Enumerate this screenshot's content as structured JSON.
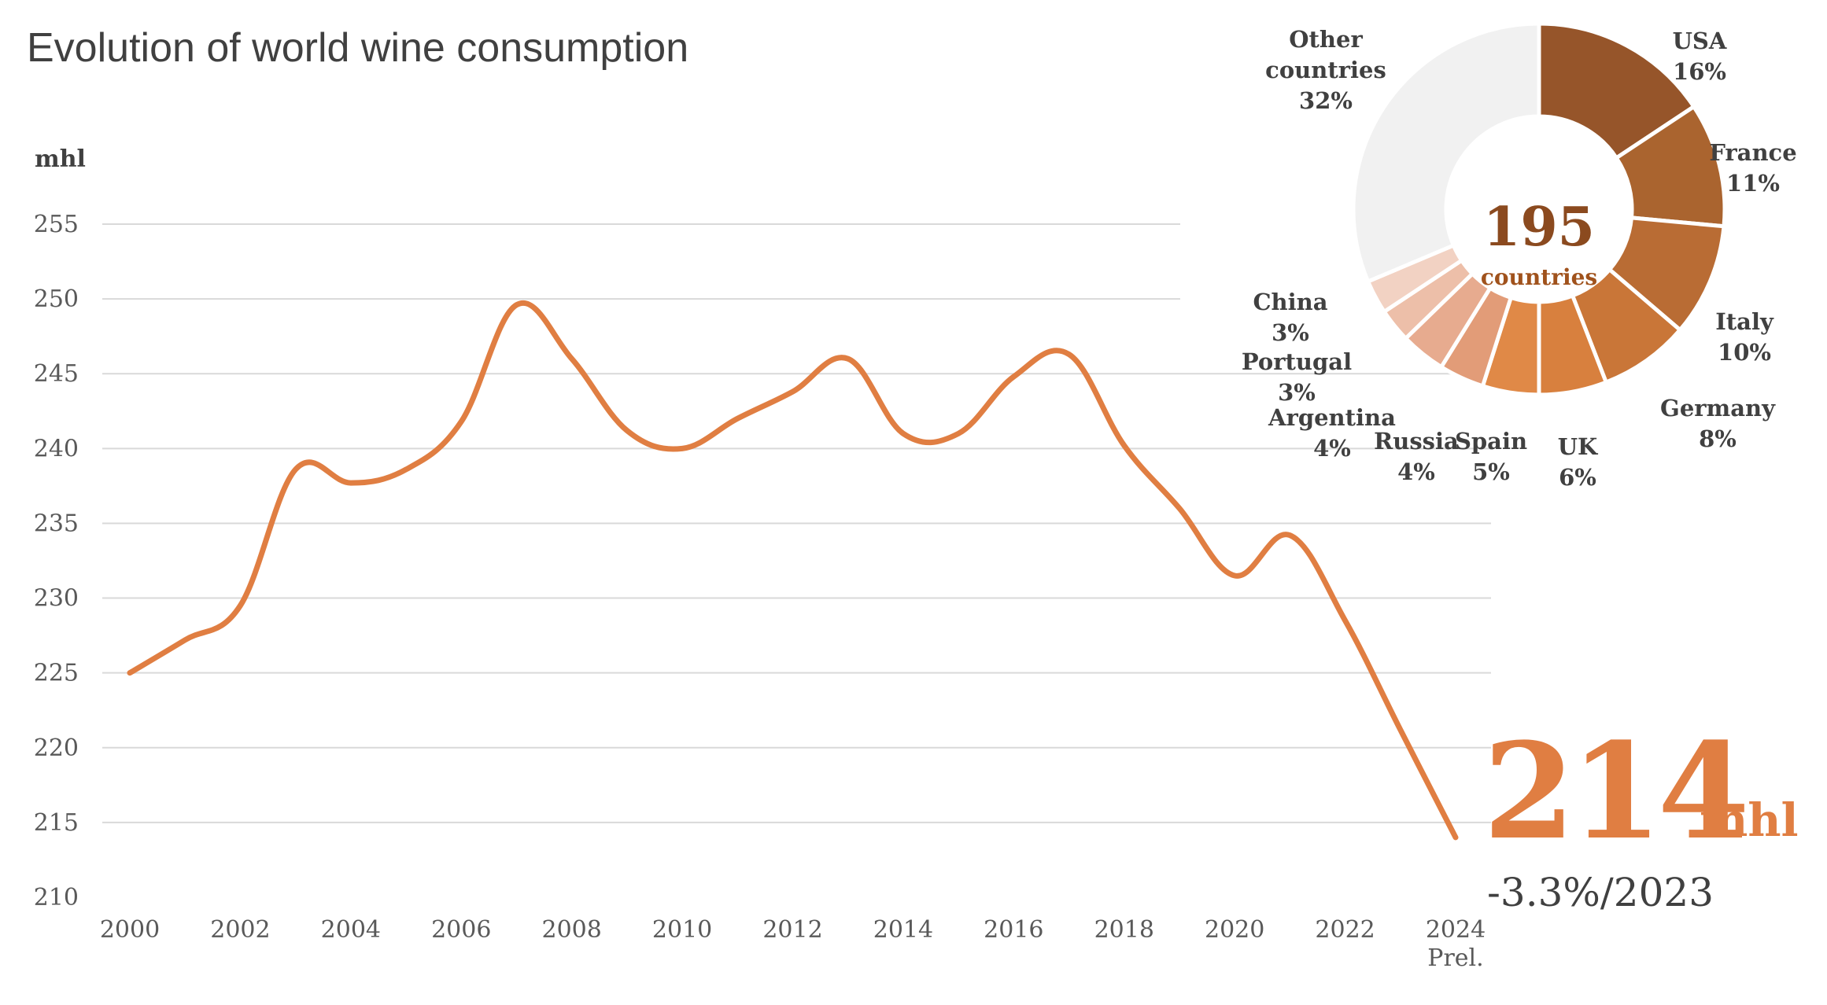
{
  "title": "Evolution of world wine consumption",
  "highlight": {
    "value": "214",
    "unit": "mhl",
    "change": "-3.3%/2023"
  },
  "colors": {
    "line": "#e07e42",
    "grid": "#d9d9d9",
    "text": "#404040"
  },
  "chart_data": [
    {
      "type": "line",
      "title": "Evolution of world wine consumption",
      "ylabel": "mhl",
      "xlabel": "",
      "ylim": [
        210,
        255
      ],
      "yticks": [
        210,
        215,
        220,
        225,
        230,
        235,
        240,
        245,
        250,
        255
      ],
      "xticks": [
        "2000",
        "2002",
        "2004",
        "2006",
        "2008",
        "2010",
        "2012",
        "2014",
        "2016",
        "2018",
        "2020",
        "2022",
        "2024"
      ],
      "x_note": "Prel.",
      "x": [
        2000,
        2001,
        2002,
        2003,
        2004,
        2005,
        2006,
        2007,
        2008,
        2009,
        2010,
        2011,
        2012,
        2013,
        2014,
        2015,
        2016,
        2017,
        2018,
        2019,
        2020,
        2021,
        2022,
        2023,
        2024
      ],
      "series": [
        {
          "name": "World wine consumption",
          "values": [
            225.0,
            227.2,
            229.5,
            238.6,
            237.7,
            238.6,
            241.8,
            249.6,
            246.0,
            241.2,
            240.0,
            242.0,
            243.8,
            246.0,
            241.0,
            241.0,
            244.8,
            246.3,
            240.2,
            236.0,
            231.5,
            234.2,
            228.5,
            221.2,
            214.0
          ]
        }
      ]
    },
    {
      "type": "pie",
      "title": "",
      "center_value": "195",
      "center_label": "countries",
      "slices": [
        {
          "label": "USA",
          "percent_label": "16%",
          "value": 16,
          "color": "#96552a"
        },
        {
          "label": "France",
          "percent_label": "11%",
          "value": 11,
          "color": "#aa642f"
        },
        {
          "label": "Italy",
          "percent_label": "10%",
          "value": 10,
          "color": "#b96c34"
        },
        {
          "label": "Germany",
          "percent_label": "8%",
          "value": 8,
          "color": "#c97638"
        },
        {
          "label": "UK",
          "percent_label": "6%",
          "value": 6,
          "color": "#d8803e"
        },
        {
          "label": "Spain",
          "percent_label": "5%",
          "value": 5,
          "color": "#e08947"
        },
        {
          "label": "Russia",
          "percent_label": "4%",
          "value": 4,
          "color": "#e29c78"
        },
        {
          "label": "Argentina",
          "percent_label": "4%",
          "value": 4,
          "color": "#e7ab8f"
        },
        {
          "label": "Portugal",
          "percent_label": "3%",
          "value": 3,
          "color": "#edbfa9"
        },
        {
          "label": "China",
          "percent_label": "3%",
          "value": 3,
          "color": "#f2d2c3"
        },
        {
          "label": "Other countries",
          "percent_label": "32%",
          "value": 32,
          "color": "#f1f1f1"
        }
      ]
    }
  ]
}
